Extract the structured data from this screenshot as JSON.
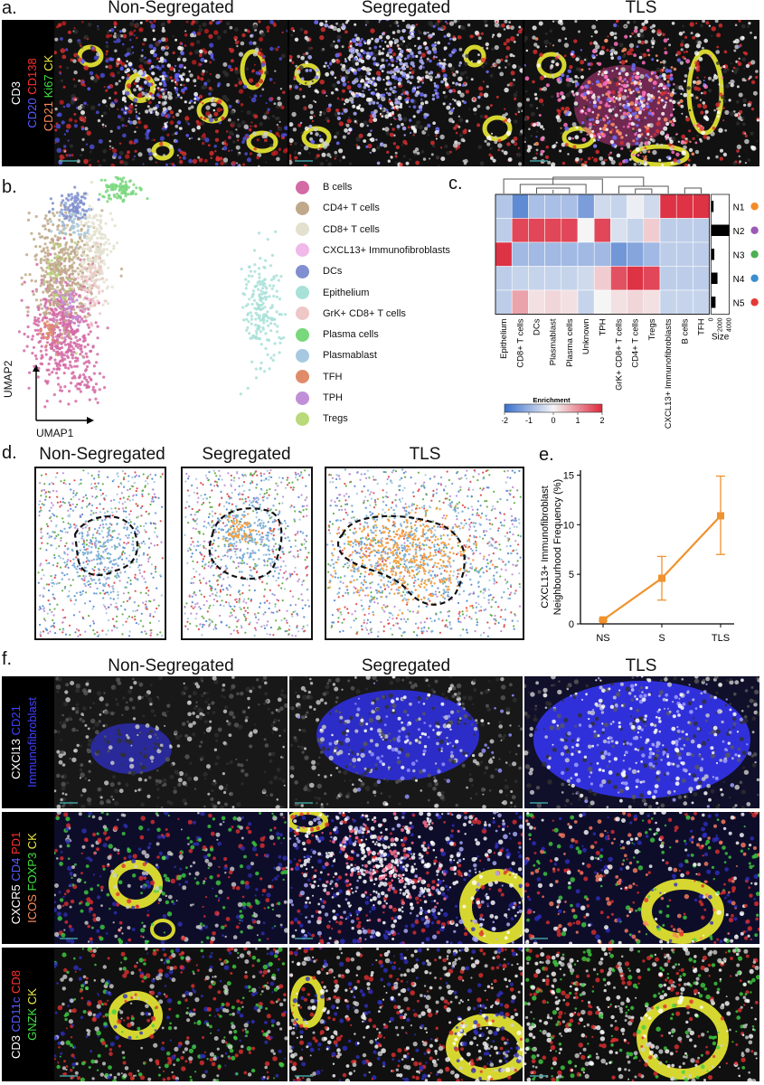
{
  "panels": {
    "a": {
      "label": "a.",
      "columns": [
        "Non-Segregated",
        "Segregated",
        "TLS"
      ],
      "channels": [
        [
          {
            "t": "CD3",
            "c": "#ffffff"
          }
        ],
        [
          {
            "t": "CD20 ",
            "c": "#5a5aff"
          },
          {
            "t": "CD138",
            "c": "#ff3030"
          }
        ],
        [
          {
            "t": "CD21 ",
            "c": "#ff8c5a"
          },
          {
            "t": "Ki67 ",
            "c": "#40e040"
          },
          {
            "t": "CK",
            "c": "#e8e840"
          }
        ]
      ]
    },
    "b": {
      "label": "b.",
      "xaxis": "UMAP1",
      "yaxis": "UMAP2",
      "legend": [
        {
          "name": "B cells",
          "color": "#d36aa5"
        },
        {
          "name": "CD4+ T cells",
          "color": "#bfa98a"
        },
        {
          "name": "CD8+ T cells",
          "color": "#e3e0cf"
        },
        {
          "name": "CXCL13+ Immunofibroblasts",
          "color": "#f0b9ea"
        },
        {
          "name": "DCs",
          "color": "#7f8fcf"
        },
        {
          "name": "Epithelium",
          "color": "#a8e1d8"
        },
        {
          "name": "GrK+ CD8+ T cells",
          "color": "#efc7c7"
        },
        {
          "name": "Plasma cells",
          "color": "#79d77c"
        },
        {
          "name": "Plasmablast",
          "color": "#a6c9e0"
        },
        {
          "name": "TFH",
          "color": "#e08c6b"
        },
        {
          "name": "TPH",
          "color": "#c08fd8"
        },
        {
          "name": "Tregs",
          "color": "#b9d97a"
        }
      ]
    },
    "c": {
      "label": "c.",
      "chart_data": {
        "type": "heatmap",
        "columns": [
          "Epithelium",
          "CD8+ T cells",
          "DCs",
          "Plasmablast",
          "Plasma cells",
          "Unknown",
          "TPH",
          "GrK+ CD8+ T cells",
          "CD4+ T cells",
          "Tregs",
          "CXCL13+ Immunofibroblasts",
          "B cells",
          "TFH"
        ],
        "rows": [
          "N1",
          "N2",
          "N3",
          "N4",
          "N5"
        ],
        "row_colors": [
          "#f28c28",
          "#9b59b6",
          "#4caf50",
          "#3b8ed0",
          "#e53935"
        ],
        "values": [
          [
            -0.7,
            -1.6,
            -0.8,
            -0.8,
            -0.8,
            -1.3,
            -0.4,
            -0.5,
            -0.1,
            -0.4,
            1.9,
            1.9,
            1.9
          ],
          [
            -0.6,
            1.7,
            1.7,
            1.7,
            1.7,
            0.0,
            1.7,
            -0.3,
            -0.5,
            0.4,
            -0.6,
            -0.6,
            -0.6
          ],
          [
            1.9,
            -0.9,
            -0.9,
            -0.9,
            -0.9,
            -0.9,
            -0.9,
            -1.4,
            -1.2,
            -0.9,
            -0.6,
            -0.6,
            -0.6
          ],
          [
            -0.6,
            -0.5,
            -0.5,
            -0.5,
            -0.5,
            -0.4,
            0.4,
            1.6,
            1.9,
            1.7,
            -0.6,
            -0.6,
            -0.6
          ],
          [
            -0.6,
            0.8,
            0.2,
            0.3,
            0.2,
            -0.5,
            0.0,
            0.2,
            0.3,
            0.2,
            -0.5,
            -0.5,
            -0.5
          ]
        ],
        "size": [
          600,
          4600,
          800,
          1600,
          1100
        ],
        "size_label": "Size",
        "size_ticks": [
          "0",
          "2000",
          "4000"
        ],
        "colorbar_title": "Enrichment",
        "colorbar_ticks": [
          "-2",
          "-1",
          "0",
          "1",
          "2"
        ],
        "vmin": -2,
        "vmax": 2
      }
    },
    "d": {
      "label": "d.",
      "titles": [
        "Non-Segregated",
        "Segregated",
        "TLS"
      ]
    },
    "e": {
      "label": "e.",
      "chart_data": {
        "type": "line",
        "categories": [
          "NS",
          "S",
          "TLS"
        ],
        "values": [
          0.4,
          4.6,
          10.9
        ],
        "err_low": [
          0.3,
          2.4,
          7.0
        ],
        "err_high": [
          0.5,
          6.8,
          14.9
        ],
        "ylabel_line1": "CXCL13+ Immunofibroblast",
        "ylabel_line2": "Neighbourhood Frequency (%)",
        "yticks": [
          "0",
          "5",
          "10",
          "15"
        ],
        "ylim": [
          0,
          15.5
        ],
        "color": "#f0922e"
      }
    },
    "f": {
      "label": "f.",
      "columns": [
        "Non-Segregated",
        "Segregated",
        "TLS"
      ],
      "rows": [
        [
          [
            {
              "t": "CXCl13 ",
              "c": "#ffffff"
            },
            {
              "t": "CD21",
              "c": "#4040ff"
            }
          ],
          [
            {
              "t": "Immunofibroblast",
              "c": "#4040ff"
            }
          ]
        ],
        [
          [
            {
              "t": "CXCR5 ",
              "c": "#ffffff"
            },
            {
              "t": "CD4 ",
              "c": "#5a5aff"
            },
            {
              "t": "PD1",
              "c": "#ff3030"
            }
          ],
          [
            {
              "t": "ICOS ",
              "c": "#ff8c5a"
            },
            {
              "t": "FOXP3 ",
              "c": "#40e040"
            },
            {
              "t": "CK",
              "c": "#e8e840"
            }
          ]
        ],
        [
          [
            {
              "t": "CD3 ",
              "c": "#ffffff"
            },
            {
              "t": "CD11c ",
              "c": "#5a5aff"
            },
            {
              "t": "CD8",
              "c": "#ff3030"
            }
          ],
          [
            {
              "t": "GNZK ",
              "c": "#40e040"
            },
            {
              "t": "CK",
              "c": "#e8e840"
            }
          ]
        ]
      ]
    }
  }
}
